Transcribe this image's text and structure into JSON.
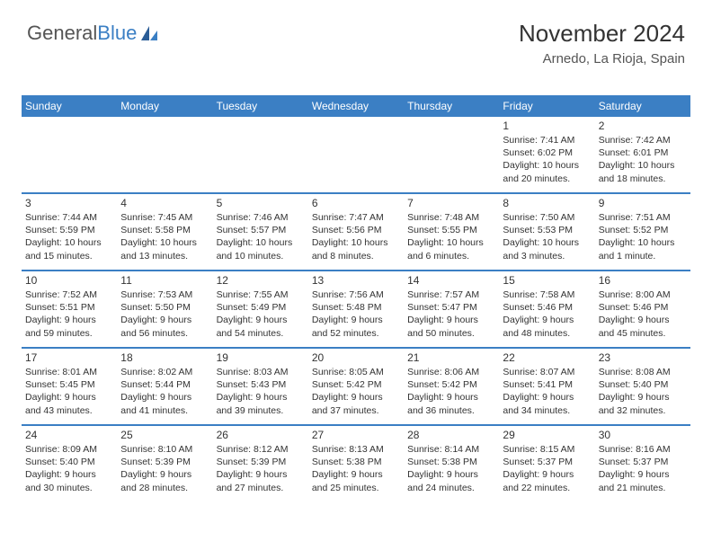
{
  "brand": {
    "part1": "General",
    "part2": "Blue"
  },
  "title": "November 2024",
  "location": "Arnedo, La Rioja, Spain",
  "colors": {
    "accent": "#3b7fc4",
    "header_text": "#ffffff",
    "body_text": "#333333",
    "background": "#ffffff"
  },
  "dayHeaders": [
    "Sunday",
    "Monday",
    "Tuesday",
    "Wednesday",
    "Thursday",
    "Friday",
    "Saturday"
  ],
  "weeks": [
    [
      null,
      null,
      null,
      null,
      null,
      {
        "n": "1",
        "sr": "Sunrise: 7:41 AM",
        "ss": "Sunset: 6:02 PM",
        "d1": "Daylight: 10 hours",
        "d2": "and 20 minutes."
      },
      {
        "n": "2",
        "sr": "Sunrise: 7:42 AM",
        "ss": "Sunset: 6:01 PM",
        "d1": "Daylight: 10 hours",
        "d2": "and 18 minutes."
      }
    ],
    [
      {
        "n": "3",
        "sr": "Sunrise: 7:44 AM",
        "ss": "Sunset: 5:59 PM",
        "d1": "Daylight: 10 hours",
        "d2": "and 15 minutes."
      },
      {
        "n": "4",
        "sr": "Sunrise: 7:45 AM",
        "ss": "Sunset: 5:58 PM",
        "d1": "Daylight: 10 hours",
        "d2": "and 13 minutes."
      },
      {
        "n": "5",
        "sr": "Sunrise: 7:46 AM",
        "ss": "Sunset: 5:57 PM",
        "d1": "Daylight: 10 hours",
        "d2": "and 10 minutes."
      },
      {
        "n": "6",
        "sr": "Sunrise: 7:47 AM",
        "ss": "Sunset: 5:56 PM",
        "d1": "Daylight: 10 hours",
        "d2": "and 8 minutes."
      },
      {
        "n": "7",
        "sr": "Sunrise: 7:48 AM",
        "ss": "Sunset: 5:55 PM",
        "d1": "Daylight: 10 hours",
        "d2": "and 6 minutes."
      },
      {
        "n": "8",
        "sr": "Sunrise: 7:50 AM",
        "ss": "Sunset: 5:53 PM",
        "d1": "Daylight: 10 hours",
        "d2": "and 3 minutes."
      },
      {
        "n": "9",
        "sr": "Sunrise: 7:51 AM",
        "ss": "Sunset: 5:52 PM",
        "d1": "Daylight: 10 hours",
        "d2": "and 1 minute."
      }
    ],
    [
      {
        "n": "10",
        "sr": "Sunrise: 7:52 AM",
        "ss": "Sunset: 5:51 PM",
        "d1": "Daylight: 9 hours",
        "d2": "and 59 minutes."
      },
      {
        "n": "11",
        "sr": "Sunrise: 7:53 AM",
        "ss": "Sunset: 5:50 PM",
        "d1": "Daylight: 9 hours",
        "d2": "and 56 minutes."
      },
      {
        "n": "12",
        "sr": "Sunrise: 7:55 AM",
        "ss": "Sunset: 5:49 PM",
        "d1": "Daylight: 9 hours",
        "d2": "and 54 minutes."
      },
      {
        "n": "13",
        "sr": "Sunrise: 7:56 AM",
        "ss": "Sunset: 5:48 PM",
        "d1": "Daylight: 9 hours",
        "d2": "and 52 minutes."
      },
      {
        "n": "14",
        "sr": "Sunrise: 7:57 AM",
        "ss": "Sunset: 5:47 PM",
        "d1": "Daylight: 9 hours",
        "d2": "and 50 minutes."
      },
      {
        "n": "15",
        "sr": "Sunrise: 7:58 AM",
        "ss": "Sunset: 5:46 PM",
        "d1": "Daylight: 9 hours",
        "d2": "and 48 minutes."
      },
      {
        "n": "16",
        "sr": "Sunrise: 8:00 AM",
        "ss": "Sunset: 5:46 PM",
        "d1": "Daylight: 9 hours",
        "d2": "and 45 minutes."
      }
    ],
    [
      {
        "n": "17",
        "sr": "Sunrise: 8:01 AM",
        "ss": "Sunset: 5:45 PM",
        "d1": "Daylight: 9 hours",
        "d2": "and 43 minutes."
      },
      {
        "n": "18",
        "sr": "Sunrise: 8:02 AM",
        "ss": "Sunset: 5:44 PM",
        "d1": "Daylight: 9 hours",
        "d2": "and 41 minutes."
      },
      {
        "n": "19",
        "sr": "Sunrise: 8:03 AM",
        "ss": "Sunset: 5:43 PM",
        "d1": "Daylight: 9 hours",
        "d2": "and 39 minutes."
      },
      {
        "n": "20",
        "sr": "Sunrise: 8:05 AM",
        "ss": "Sunset: 5:42 PM",
        "d1": "Daylight: 9 hours",
        "d2": "and 37 minutes."
      },
      {
        "n": "21",
        "sr": "Sunrise: 8:06 AM",
        "ss": "Sunset: 5:42 PM",
        "d1": "Daylight: 9 hours",
        "d2": "and 36 minutes."
      },
      {
        "n": "22",
        "sr": "Sunrise: 8:07 AM",
        "ss": "Sunset: 5:41 PM",
        "d1": "Daylight: 9 hours",
        "d2": "and 34 minutes."
      },
      {
        "n": "23",
        "sr": "Sunrise: 8:08 AM",
        "ss": "Sunset: 5:40 PM",
        "d1": "Daylight: 9 hours",
        "d2": "and 32 minutes."
      }
    ],
    [
      {
        "n": "24",
        "sr": "Sunrise: 8:09 AM",
        "ss": "Sunset: 5:40 PM",
        "d1": "Daylight: 9 hours",
        "d2": "and 30 minutes."
      },
      {
        "n": "25",
        "sr": "Sunrise: 8:10 AM",
        "ss": "Sunset: 5:39 PM",
        "d1": "Daylight: 9 hours",
        "d2": "and 28 minutes."
      },
      {
        "n": "26",
        "sr": "Sunrise: 8:12 AM",
        "ss": "Sunset: 5:39 PM",
        "d1": "Daylight: 9 hours",
        "d2": "and 27 minutes."
      },
      {
        "n": "27",
        "sr": "Sunrise: 8:13 AM",
        "ss": "Sunset: 5:38 PM",
        "d1": "Daylight: 9 hours",
        "d2": "and 25 minutes."
      },
      {
        "n": "28",
        "sr": "Sunrise: 8:14 AM",
        "ss": "Sunset: 5:38 PM",
        "d1": "Daylight: 9 hours",
        "d2": "and 24 minutes."
      },
      {
        "n": "29",
        "sr": "Sunrise: 8:15 AM",
        "ss": "Sunset: 5:37 PM",
        "d1": "Daylight: 9 hours",
        "d2": "and 22 minutes."
      },
      {
        "n": "30",
        "sr": "Sunrise: 8:16 AM",
        "ss": "Sunset: 5:37 PM",
        "d1": "Daylight: 9 hours",
        "d2": "and 21 minutes."
      }
    ]
  ]
}
